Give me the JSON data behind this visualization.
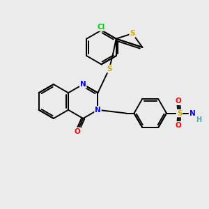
{
  "bg_color": "#ebebeb",
  "bond_color": "#000000",
  "bond_width": 1.4,
  "atom_colors": {
    "N": "#0000ff",
    "O": "#ff0000",
    "S": "#ccaa00",
    "Cl": "#00cc00",
    "H": "#4aa8a8",
    "C": "#000000"
  },
  "figsize": [
    3.0,
    3.0
  ],
  "dpi": 100,
  "xlim": [
    0,
    10
  ],
  "ylim": [
    0,
    10
  ]
}
